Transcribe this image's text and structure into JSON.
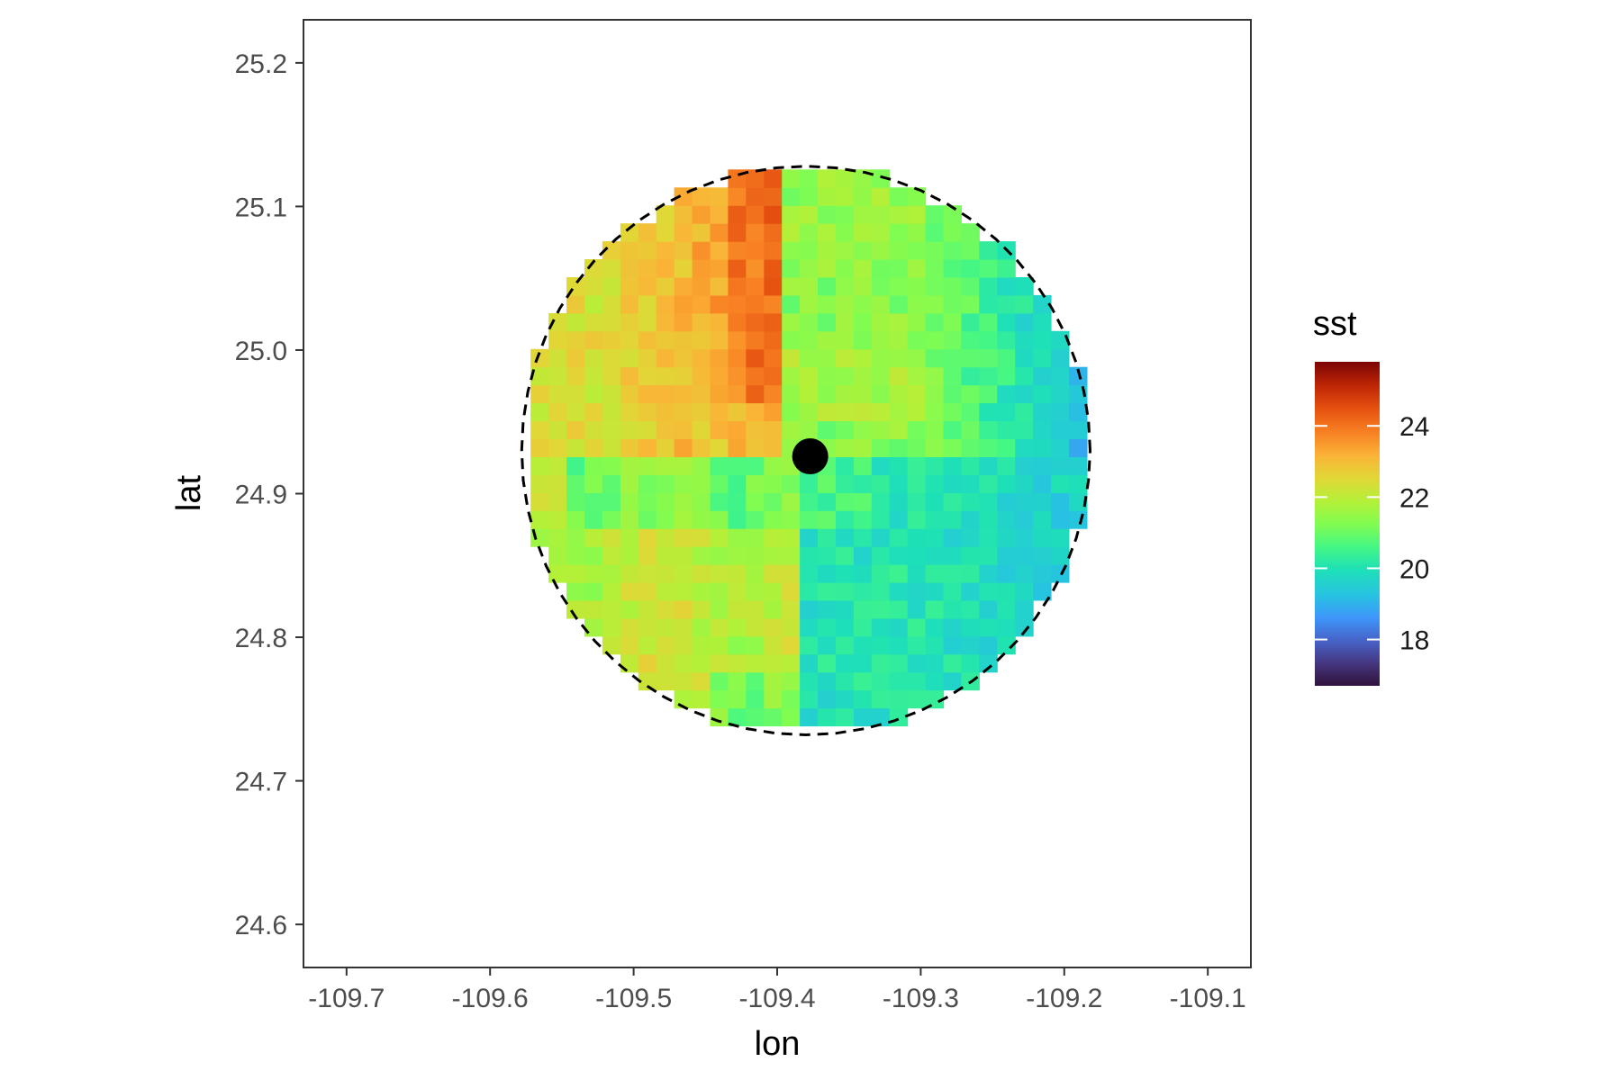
{
  "chart_data": {
    "type": "heatmap",
    "title": "",
    "xlabel": "lon",
    "ylabel": "lat",
    "xlim": [
      -109.73,
      -109.07
    ],
    "ylim": [
      24.57,
      25.23
    ],
    "x_ticks": [
      -109.7,
      -109.6,
      -109.5,
      -109.4,
      -109.3,
      -109.2,
      -109.1
    ],
    "x_tick_labels": [
      "-109.7",
      "-109.6",
      "-109.5",
      "-109.4",
      "-109.3",
      "-109.2",
      "-109.1"
    ],
    "y_ticks": [
      24.6,
      24.7,
      24.8,
      24.9,
      25.0,
      25.1,
      25.2
    ],
    "y_tick_labels": [
      "24.6",
      "24.7",
      "24.8",
      "24.9",
      "25.0",
      "25.1",
      "25.2"
    ],
    "grid": false,
    "legend_position": "right",
    "fill_variable": "sst",
    "colorbar": {
      "title": "sst",
      "range": [
        16.7,
        25.8
      ],
      "breaks": [
        18,
        20,
        22,
        24
      ],
      "break_labels": [
        "18",
        "20",
        "22",
        "24"
      ],
      "palette": "turbo"
    },
    "center_point": {
      "lon": -109.377,
      "lat": 24.926
    },
    "circle_boundary": {
      "center_lon": -109.38,
      "center_lat": 24.93,
      "radius_deg": 0.198,
      "style": "dashed"
    },
    "grid_resolution_deg": 0.0125,
    "sst_field_description": "gridded sea surface temperature inside circle; quadrants: NW ~23-24, NE ~19-21, SW ~21.5-22.5, SE ~20"
  },
  "colors": {
    "panel_border": "#333333",
    "point": "#000000",
    "boundary": "#000000"
  }
}
